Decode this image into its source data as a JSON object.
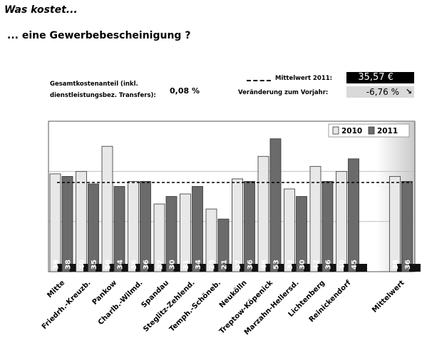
{
  "header": {
    "title": "Was kostet...",
    "subtitle": "... eine Gewerbebescheinigung ?"
  },
  "kosten": {
    "label_line1": "Gesamtkostenanteil (inkl.",
    "label_line2": "dienstleistungsbez. Transfers):",
    "value": "0,08 %"
  },
  "mittelwert_box": {
    "label": "Mittelwert 2011:",
    "value": "35,57 €",
    "change_label": "Veränderung zum Vorjahr:",
    "change_value": "-6,76 %",
    "change_icon": "arrow-down-right-icon"
  },
  "chart_data": {
    "type": "bar",
    "categories": [
      "Mitte",
      "Friedrh.-Kreuzb.",
      "Pankow",
      "Charlb.-Wilmd.",
      "Spandau",
      "Steglitz-Zehlend.",
      "Temph.-Schöneb.",
      "Neukölln",
      "Treptow-Köpenick",
      "Marzahn-Hellersd.",
      "Lichtenberg",
      "Reinickendorf",
      "Mittelwert"
    ],
    "series": [
      {
        "name": "2010",
        "color": "#e8e8e8",
        "values": [
          39,
          40,
          50,
          36,
          27,
          31,
          25,
          37,
          46,
          33,
          42,
          40,
          38
        ]
      },
      {
        "name": "2011",
        "color": "#6b6b6b",
        "values": [
          38,
          35,
          34,
          36,
          30,
          34,
          21,
          36,
          53,
          30,
          36,
          45,
          36
        ]
      }
    ],
    "reference_line": {
      "name": "Mittelwert 2011",
      "value": 35.57
    },
    "ylim": [
      0,
      60
    ],
    "grid": true,
    "legend": "top-right"
  }
}
